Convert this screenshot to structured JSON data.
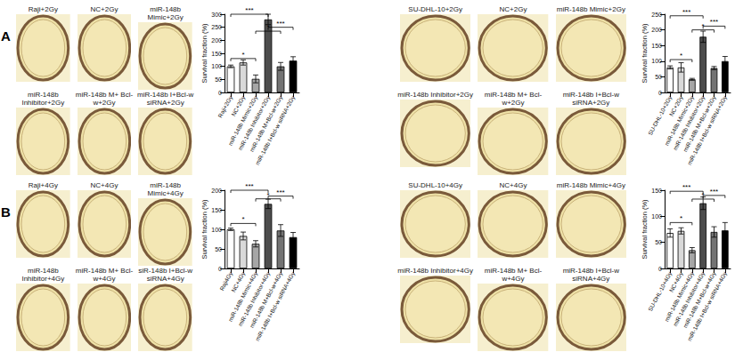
{
  "panel_labels": [
    "A",
    "B"
  ],
  "plate_groups": [
    {
      "labels": [
        "Raji+2Gy",
        "NC+2Gy",
        "miR-148b Mimic+2Gy",
        "miR-148b Inhibitor+2Gy",
        "miR-148b M+ Bcl-w+2Gy",
        "miR-148b I+Bcl-w siRNA+2Gy"
      ]
    },
    {
      "labels": [
        "SU-DHL-10+2Gy",
        "NC+2Gy",
        "miR-148b Mimic+2Gy",
        "miR-148b Inhibitor+2Gy",
        "miR-148b M+ Bcl-w+2Gy",
        "miR-148b I+Bcl-w siRNA+2Gy"
      ]
    },
    {
      "labels": [
        "Raji+4Gy",
        "NC+4Gy",
        "miR-148b Mimic+4Gy",
        "miR-148b Inhibitor+4Gy",
        "miR-148b M+ Bcl-w+4Gy",
        "siR-148b I+Bcl-w siRNA+4Gy"
      ]
    },
    {
      "labels": [
        "SU-DHL-10+4Gy",
        "NC+4Gy",
        "miR-148b Mimic+4Gy",
        "miR-148b Inhibitor+4Gy",
        "miR-148b M+ Bcl-w+4Gy",
        "miR-148b I+Bcl-w siRNA+4Gy"
      ]
    }
  ],
  "chart_data": [
    {
      "type": "bar",
      "ylabel": "Survival fraction (%)",
      "categories": [
        "Raji+2Gy",
        "NC+2Gy",
        "miR-148b Mimic+2Gy",
        "miR-148b Inhibitor+2Gy",
        "miR-148b M+Bcl-w+2Gy",
        "miR-148b I+Bcl-w siRNA+2Gy"
      ],
      "values": [
        100,
        115,
        52,
        280,
        100,
        122
      ],
      "errors": [
        5,
        10,
        15,
        20,
        15,
        15
      ],
      "colors": [
        "#ffffff",
        "#d9d9d9",
        "#a6a6a6",
        "#4d4d4d",
        "#737373",
        "#000000"
      ],
      "ylim": [
        0,
        300
      ],
      "yticks": [
        0,
        50,
        100,
        150,
        200,
        250,
        300
      ],
      "significance": [
        {
          "from": 0,
          "to": 3,
          "y": 300,
          "label": "***"
        },
        {
          "from": 0,
          "to": 2,
          "y": 130,
          "label": "*"
        },
        {
          "from": 2,
          "to": 4,
          "y": 235,
          "label": "*"
        },
        {
          "from": 3,
          "to": 5,
          "y": 250,
          "label": "***"
        }
      ]
    },
    {
      "type": "bar",
      "ylabel": "Survival fraction (%)",
      "categories": [
        "SU-DHL-10+2Gy",
        "NC+2Gy",
        "miR-148b Mimic+2Gy",
        "miR-148b Inhibitor+2Gy",
        "miR-148b M+Bcl-w+2Gy",
        "miR-148b I+Bcl-w siRNA+2Gy"
      ],
      "values": [
        80,
        80,
        42,
        178,
        78,
        100
      ],
      "errors": [
        5,
        15,
        3,
        18,
        5,
        15
      ],
      "colors": [
        "#ffffff",
        "#d9d9d9",
        "#a6a6a6",
        "#4d4d4d",
        "#737373",
        "#000000"
      ],
      "ylim": [
        0,
        250
      ],
      "yticks": [
        0,
        50,
        100,
        150,
        200,
        250
      ],
      "significance": [
        {
          "from": 0,
          "to": 3,
          "y": 245,
          "label": "***"
        },
        {
          "from": 0,
          "to": 2,
          "y": 105,
          "label": "*"
        },
        {
          "from": 2,
          "to": 4,
          "y": 200,
          "label": "*"
        },
        {
          "from": 3,
          "to": 5,
          "y": 212,
          "label": "***"
        }
      ]
    },
    {
      "type": "bar",
      "ylabel": "Survival fraction (%)",
      "categories": [
        "Raji4Gy",
        "NC+4Gy",
        "miR-148b Mimic+4Gy",
        "miR-148b Inhibitor+4Gy",
        "miR-148b M+Bcl-w+4Gy",
        "miR-148b I+Bcl-w siRNA+4Gy"
      ],
      "values": [
        100,
        83,
        63,
        165,
        97,
        80
      ],
      "errors": [
        3,
        10,
        8,
        12,
        15,
        12
      ],
      "colors": [
        "#ffffff",
        "#d9d9d9",
        "#a6a6a6",
        "#4d4d4d",
        "#737373",
        "#000000"
      ],
      "ylim": [
        0,
        200
      ],
      "yticks": [
        0,
        50,
        100,
        150,
        200
      ],
      "significance": [
        {
          "from": 0,
          "to": 3,
          "y": 200,
          "label": "***"
        },
        {
          "from": 0,
          "to": 2,
          "y": 115,
          "label": "*"
        },
        {
          "from": 2,
          "to": 4,
          "y": 178,
          "label": "*"
        },
        {
          "from": 3,
          "to": 5,
          "y": 185,
          "label": "***"
        }
      ]
    },
    {
      "type": "bar",
      "ylabel": "Survival fraction (%)",
      "categories": [
        "SU-DHL-10+4Gy",
        "NC+4Gy",
        "miR-148b Mimic+4Gy",
        "miR-148b Inhibitor+4Gy",
        "miR-148b M+Bcl-w+4Gy",
        "miR-148b I+Bcl-w siRNA+4Gy"
      ],
      "values": [
        68,
        72,
        35,
        125,
        70,
        73
      ],
      "errors": [
        8,
        6,
        5,
        12,
        10,
        15
      ],
      "colors": [
        "#ffffff",
        "#d9d9d9",
        "#a6a6a6",
        "#4d4d4d",
        "#737373",
        "#000000"
      ],
      "ylim": [
        0,
        150
      ],
      "yticks": [
        0,
        50,
        100,
        150
      ],
      "significance": [
        {
          "from": 0,
          "to": 3,
          "y": 148,
          "label": "***"
        },
        {
          "from": 0,
          "to": 2,
          "y": 88,
          "label": "*"
        },
        {
          "from": 2,
          "to": 4,
          "y": 133,
          "label": "*"
        },
        {
          "from": 3,
          "to": 5,
          "y": 140,
          "label": "***"
        }
      ]
    }
  ]
}
